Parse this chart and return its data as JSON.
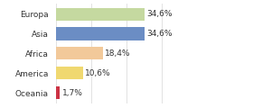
{
  "categories": [
    "Europa",
    "Asia",
    "Africa",
    "America",
    "Oceania"
  ],
  "values": [
    34.6,
    34.6,
    18.4,
    10.6,
    1.7
  ],
  "labels": [
    "34,6%",
    "34,6%",
    "18,4%",
    "10,6%",
    "1,7%"
  ],
  "bar_colors": [
    "#c5d9a0",
    "#6b8dc4",
    "#f2c99a",
    "#f0d870",
    "#cc3344"
  ],
  "background_color": "#ffffff",
  "xlim": [
    0,
    55
  ],
  "bar_height": 0.65,
  "label_fontsize": 6.5,
  "ytick_fontsize": 6.5,
  "grid_color": "#dddddd",
  "grid_positions": [
    0,
    13.75,
    27.5,
    41.25,
    55
  ]
}
